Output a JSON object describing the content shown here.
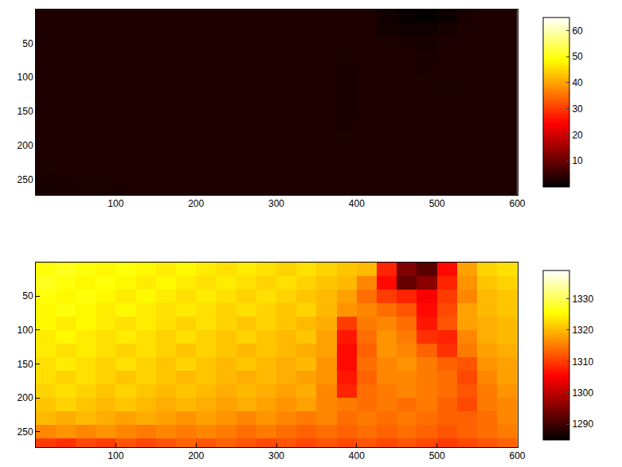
{
  "chart_data": [
    {
      "type": "heatmap",
      "x": [
        12.5,
        37.5,
        62.5,
        87.5,
        112.5,
        137.5,
        162.5,
        187.5,
        212.5,
        237.5,
        262.5,
        287.5,
        312.5,
        337.5,
        362.5,
        387.5,
        412.5,
        437.5,
        462.5,
        487.5,
        512.5,
        537.5,
        562.5,
        587.5
      ],
      "y": [
        10,
        30,
        50,
        70,
        90,
        110,
        130,
        150,
        170,
        190,
        210,
        230,
        250,
        270
      ],
      "z": [
        [
          3,
          3,
          3,
          3,
          3,
          3,
          3,
          3,
          3,
          3,
          3,
          3,
          3,
          3,
          3,
          3,
          3,
          1.5,
          0.8,
          0.5,
          1.2,
          2.5,
          3,
          3
        ],
        [
          3,
          3,
          3,
          3,
          3,
          3,
          3,
          3,
          3,
          3,
          3,
          3,
          3,
          3,
          3,
          3,
          3,
          2,
          1.5,
          1.5,
          2.2,
          2.8,
          3,
          3
        ],
        [
          3,
          3,
          3,
          3,
          3,
          3,
          3,
          3,
          3,
          3,
          3,
          3,
          3,
          3,
          3,
          3,
          3,
          2.8,
          2.5,
          2.4,
          2.8,
          3,
          3,
          3
        ],
        [
          3,
          3,
          3,
          3,
          3,
          3,
          3,
          3,
          3,
          3,
          3,
          3,
          3,
          3,
          3,
          2.8,
          3,
          3,
          3,
          2.6,
          3,
          3,
          3,
          3
        ],
        [
          3,
          3,
          3,
          3,
          3,
          3,
          3,
          3,
          3,
          3,
          3,
          3,
          3,
          3,
          3,
          2.6,
          3,
          3,
          3,
          2.7,
          3,
          3,
          3,
          3
        ],
        [
          3,
          3,
          3,
          3,
          3,
          3,
          3,
          3,
          3,
          3,
          3,
          3,
          3,
          3,
          3,
          2.6,
          3,
          3,
          3,
          2.8,
          2.8,
          3,
          3,
          3
        ],
        [
          3,
          3,
          3,
          3,
          3,
          3,
          3,
          3,
          3,
          3,
          3,
          3,
          3,
          3,
          3,
          2.6,
          3,
          3,
          3,
          3,
          2.8,
          3,
          3,
          3
        ],
        [
          3,
          3,
          3,
          3,
          3,
          3,
          3,
          3,
          3,
          3,
          3,
          3,
          3,
          3,
          3,
          2.6,
          3,
          3,
          3,
          3,
          3,
          2.9,
          3,
          3
        ],
        [
          3,
          3,
          3,
          3,
          3,
          3,
          3,
          3,
          3,
          3,
          3,
          3,
          3,
          3,
          3,
          2.7,
          3,
          3,
          3,
          3,
          3,
          2.9,
          3,
          3
        ],
        [
          3,
          3,
          3,
          3,
          3,
          3,
          3,
          3,
          3,
          3,
          3,
          3,
          3,
          3,
          3,
          2.8,
          3,
          3,
          3,
          3,
          3,
          3,
          3,
          3
        ],
        [
          3,
          3,
          3,
          3,
          3,
          3,
          3,
          3,
          3,
          3,
          3,
          3,
          3,
          3,
          3,
          3,
          3,
          3,
          3,
          3,
          3,
          3,
          3,
          3
        ],
        [
          2.8,
          3,
          3,
          3,
          3,
          3,
          3,
          3,
          3,
          3,
          3,
          3,
          3,
          3,
          3,
          3,
          3,
          3,
          3,
          3,
          3,
          3,
          3,
          3
        ],
        [
          2.6,
          2.7,
          2.8,
          2.8,
          2.9,
          2.9,
          3,
          3,
          3,
          3,
          3,
          3,
          3,
          3,
          3,
          3,
          3,
          3,
          3,
          3,
          3,
          3,
          3,
          3
        ],
        [
          2.4,
          2.5,
          2.6,
          2.6,
          2.7,
          2.7,
          2.8,
          2.8,
          2.9,
          2.9,
          3,
          3,
          3,
          3,
          3,
          3,
          3,
          3,
          3,
          3,
          3,
          3,
          3,
          3
        ]
      ],
      "xlim": [
        0.5,
        600.5
      ],
      "ylim": [
        272.5,
        0.5
      ],
      "xticks": [
        100,
        200,
        300,
        400,
        500,
        600
      ],
      "yticks": [
        50,
        100,
        150,
        200,
        250
      ],
      "colorbar_range": [
        0,
        65
      ],
      "colorbar_ticks": [
        10,
        20,
        30,
        40,
        50,
        60
      ],
      "grid": false
    },
    {
      "type": "heatmap",
      "x": [
        12.5,
        37.5,
        62.5,
        87.5,
        112.5,
        137.5,
        162.5,
        187.5,
        212.5,
        237.5,
        262.5,
        287.5,
        312.5,
        337.5,
        362.5,
        387.5,
        412.5,
        437.5,
        462.5,
        487.5,
        512.5,
        537.5,
        562.5,
        587.5
      ],
      "y": [
        10,
        30,
        50,
        70,
        90,
        110,
        130,
        150,
        170,
        190,
        210,
        230,
        250,
        270
      ],
      "z": [
        [
          1326,
          1327,
          1326,
          1325,
          1326,
          1325,
          1324,
          1325,
          1324,
          1323,
          1324,
          1323,
          1322,
          1323,
          1322,
          1321,
          1320,
          1308,
          1295,
          1292,
          1306,
          1318,
          1322,
          1323
        ],
        [
          1327,
          1326,
          1325,
          1326,
          1325,
          1324,
          1325,
          1324,
          1323,
          1324,
          1323,
          1322,
          1323,
          1322,
          1321,
          1320,
          1316,
          1306,
          1293,
          1296,
          1308,
          1317,
          1321,
          1322
        ],
        [
          1326,
          1325,
          1326,
          1325,
          1324,
          1325,
          1324,
          1323,
          1324,
          1323,
          1322,
          1323,
          1322,
          1321,
          1320,
          1318,
          1314,
          1310,
          1308,
          1305,
          1310,
          1316,
          1320,
          1321
        ],
        [
          1325,
          1326,
          1325,
          1324,
          1325,
          1324,
          1323,
          1324,
          1323,
          1322,
          1323,
          1322,
          1321,
          1322,
          1320,
          1317,
          1316,
          1314,
          1312,
          1306,
          1311,
          1318,
          1320,
          1321
        ],
        [
          1325,
          1324,
          1325,
          1324,
          1323,
          1324,
          1323,
          1322,
          1323,
          1322,
          1321,
          1322,
          1321,
          1320,
          1319,
          1310,
          1315,
          1316,
          1314,
          1307,
          1312,
          1318,
          1319,
          1320
        ],
        [
          1324,
          1325,
          1324,
          1323,
          1324,
          1323,
          1322,
          1323,
          1322,
          1321,
          1322,
          1321,
          1320,
          1321,
          1318,
          1307,
          1314,
          1317,
          1315,
          1309,
          1308,
          1316,
          1319,
          1320
        ],
        [
          1324,
          1323,
          1324,
          1323,
          1322,
          1323,
          1322,
          1321,
          1322,
          1321,
          1320,
          1321,
          1320,
          1319,
          1318,
          1306,
          1313,
          1317,
          1316,
          1313,
          1309,
          1315,
          1318,
          1319
        ],
        [
          1323,
          1324,
          1323,
          1322,
          1323,
          1322,
          1321,
          1322,
          1321,
          1320,
          1321,
          1320,
          1319,
          1320,
          1317,
          1306,
          1314,
          1316,
          1317,
          1315,
          1313,
          1312,
          1317,
          1318
        ],
        [
          1323,
          1322,
          1323,
          1322,
          1321,
          1322,
          1321,
          1320,
          1321,
          1320,
          1319,
          1320,
          1319,
          1318,
          1317,
          1307,
          1313,
          1316,
          1316,
          1315,
          1314,
          1311,
          1316,
          1318
        ],
        [
          1322,
          1323,
          1322,
          1321,
          1322,
          1321,
          1320,
          1321,
          1320,
          1319,
          1320,
          1319,
          1318,
          1319,
          1316,
          1308,
          1314,
          1315,
          1316,
          1315,
          1314,
          1312,
          1315,
          1317
        ],
        [
          1321,
          1322,
          1321,
          1320,
          1321,
          1320,
          1319,
          1320,
          1319,
          1318,
          1319,
          1318,
          1317,
          1318,
          1316,
          1315,
          1314,
          1315,
          1314,
          1315,
          1313,
          1311,
          1315,
          1316
        ],
        [
          1320,
          1319,
          1320,
          1319,
          1318,
          1319,
          1318,
          1317,
          1318,
          1317,
          1316,
          1317,
          1316,
          1315,
          1316,
          1314,
          1315,
          1314,
          1315,
          1314,
          1313,
          1313,
          1314,
          1316
        ],
        [
          1316,
          1317,
          1316,
          1317,
          1316,
          1315,
          1316,
          1315,
          1316,
          1315,
          1314,
          1315,
          1314,
          1313,
          1314,
          1313,
          1314,
          1313,
          1314,
          1313,
          1312,
          1313,
          1314,
          1315
        ],
        [
          1310,
          1309,
          1311,
          1310,
          1312,
          1311,
          1312,
          1313,
          1312,
          1313,
          1312,
          1311,
          1312,
          1311,
          1312,
          1311,
          1312,
          1311,
          1312,
          1311,
          1310,
          1311,
          1312,
          1313
        ]
      ],
      "xlim": [
        0.5,
        600.5
      ],
      "ylim": [
        272.5,
        0.5
      ],
      "xticks": [
        100,
        200,
        300,
        400,
        500,
        600
      ],
      "yticks": [
        50,
        100,
        150,
        200,
        250
      ],
      "colorbar_range": [
        1285,
        1339
      ],
      "colorbar_ticks": [
        1290,
        1300,
        1310,
        1320,
        1330
      ],
      "grid": false
    }
  ]
}
